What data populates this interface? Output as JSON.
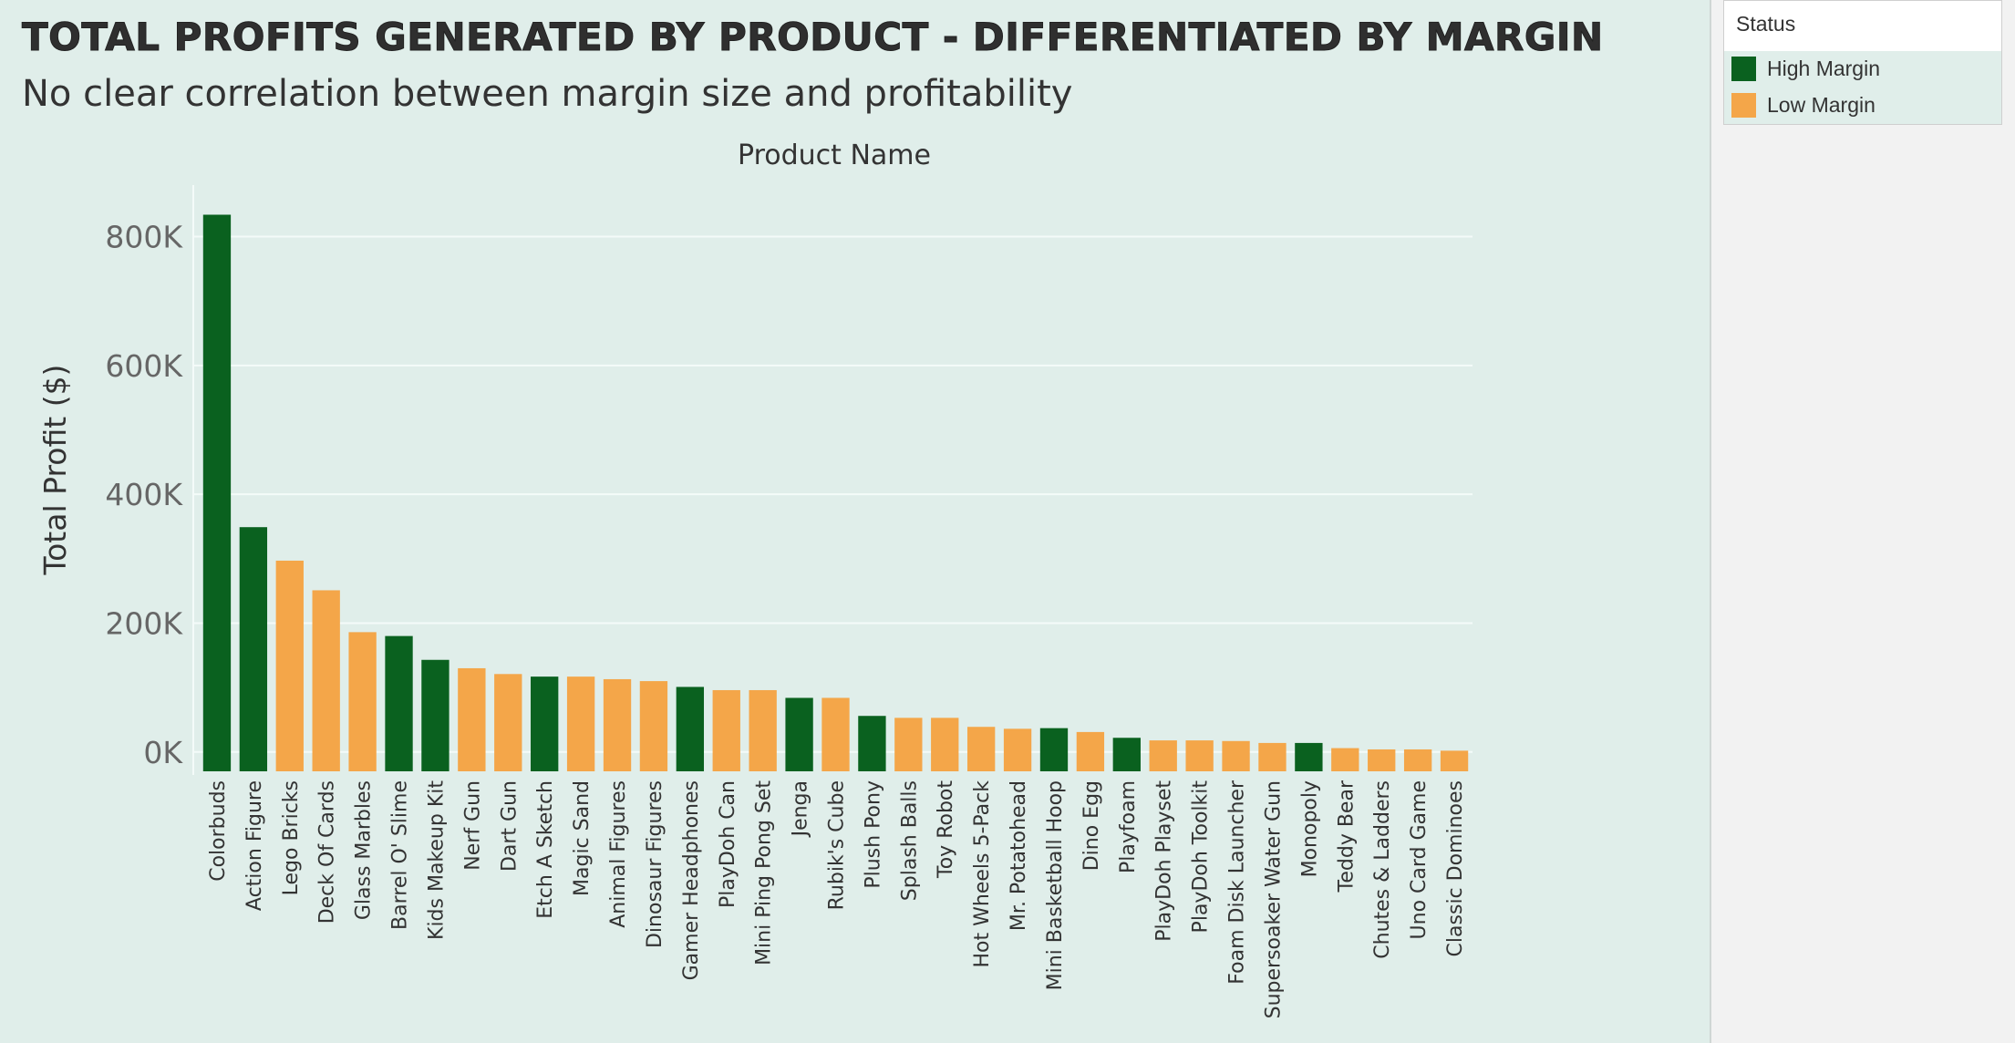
{
  "title": "Total Profits Generated by Product - Differentiated by Margin",
  "subtitle": "No clear correlation between margin size and profitability",
  "colors": {
    "High Margin": "#0a611f",
    "Low Margin": "#f4a649"
  },
  "legend": {
    "title": "Status",
    "items": [
      {
        "label": "High Margin",
        "color": "#0a611f"
      },
      {
        "label": "Low Margin",
        "color": "#f4a649"
      }
    ]
  },
  "chart_data": {
    "type": "bar",
    "title": "Product Name",
    "xlabel": "",
    "ylabel": "Total Profit ($)",
    "ylim": [
      -30000,
      880000
    ],
    "yticks": [
      0,
      200000,
      400000,
      600000,
      800000
    ],
    "ytick_labels": [
      "0K",
      "200K",
      "400K",
      "600K",
      "800K"
    ],
    "grid": true,
    "legend_position": "right",
    "categories": [
      "Colorbuds",
      "Action Figure",
      "Lego Bricks",
      "Deck Of Cards",
      "Glass Marbles",
      "Barrel O' Slime",
      "Kids Makeup Kit",
      "Nerf Gun",
      "Dart Gun",
      "Etch A Sketch",
      "Magic Sand",
      "Animal Figures",
      "Dinosaur Figures",
      "Gamer Headphones",
      "PlayDoh Can",
      "Mini Ping Pong Set",
      "Jenga",
      "Rubik's Cube",
      "Plush Pony",
      "Splash Balls",
      "Toy Robot",
      "Hot Wheels 5-Pack",
      "Mr. Potatohead",
      "Mini Basketball Hoop",
      "Dino Egg",
      "Playfoam",
      "PlayDoh Playset",
      "PlayDoh Toolkit",
      "Foam Disk Launcher",
      "Supersoaker Water Gun",
      "Monopoly",
      "Teddy Bear",
      "Chutes & Ladders",
      "Uno Card Game",
      "Classic Dominoes"
    ],
    "values": [
      834000,
      349000,
      297000,
      251000,
      186000,
      180000,
      143000,
      130000,
      121000,
      117000,
      117000,
      113000,
      110000,
      101000,
      96000,
      96000,
      84000,
      84000,
      56000,
      53000,
      53000,
      39000,
      36000,
      37000,
      31000,
      22000,
      18000,
      18000,
      17000,
      14000,
      14000,
      6000,
      4000,
      4000,
      2000
    ],
    "status": [
      "High Margin",
      "High Margin",
      "Low Margin",
      "Low Margin",
      "Low Margin",
      "High Margin",
      "High Margin",
      "Low Margin",
      "Low Margin",
      "High Margin",
      "Low Margin",
      "Low Margin",
      "Low Margin",
      "High Margin",
      "Low Margin",
      "Low Margin",
      "High Margin",
      "Low Margin",
      "High Margin",
      "Low Margin",
      "Low Margin",
      "Low Margin",
      "Low Margin",
      "High Margin",
      "Low Margin",
      "High Margin",
      "Low Margin",
      "Low Margin",
      "Low Margin",
      "Low Margin",
      "High Margin",
      "Low Margin",
      "Low Margin",
      "Low Margin",
      "Low Margin"
    ]
  }
}
